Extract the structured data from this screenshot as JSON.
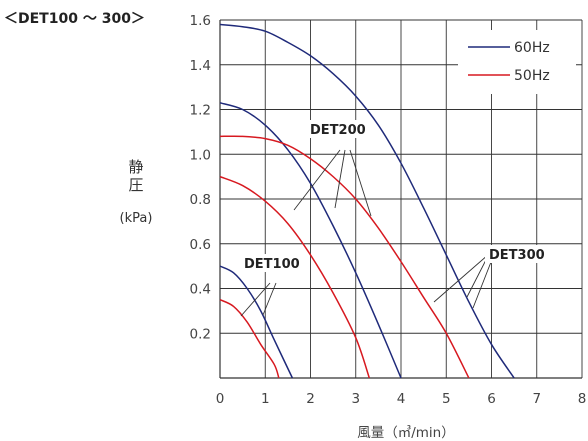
{
  "chart_data": {
    "type": "line",
    "title": "＜DET100 ～ 300＞",
    "ylabel_main": "静\n圧",
    "ylabel_unit": "(kPa)",
    "xlabel": "風量（㎥/min）",
    "xlim": [
      0,
      8
    ],
    "ylim": [
      0,
      1.6
    ],
    "x_ticks": [
      "0",
      "1",
      "2",
      "3",
      "4",
      "5",
      "6",
      "7",
      "8"
    ],
    "y_ticks": [
      "0.2",
      "0.4",
      "0.6",
      "0.8",
      "1.0",
      "1.2",
      "1.4",
      "1.6"
    ],
    "grid": true,
    "legend_position": "top-right",
    "legend": [
      {
        "label": "60Hz",
        "color": "#1f2a7a"
      },
      {
        "label": "50Hz",
        "color": "#d71920"
      }
    ],
    "annotations": [
      {
        "text": "DET100"
      },
      {
        "text": "DET200"
      },
      {
        "text": "DET300"
      }
    ],
    "series": [
      {
        "model": "DET100",
        "freq": "60Hz",
        "color": "#1f2a7a",
        "points": [
          [
            0,
            0.5
          ],
          [
            0.3,
            0.47
          ],
          [
            0.6,
            0.4
          ],
          [
            0.9,
            0.3
          ],
          [
            1.2,
            0.17
          ],
          [
            1.6,
            0
          ]
        ]
      },
      {
        "model": "DET100",
        "freq": "50Hz",
        "color": "#d71920",
        "points": [
          [
            0,
            0.35
          ],
          [
            0.3,
            0.32
          ],
          [
            0.6,
            0.25
          ],
          [
            0.9,
            0.15
          ],
          [
            1.2,
            0.06
          ],
          [
            1.3,
            0
          ]
        ]
      },
      {
        "model": "DET200",
        "freq": "60Hz",
        "color": "#1f2a7a",
        "points": [
          [
            0,
            1.23
          ],
          [
            0.5,
            1.2
          ],
          [
            1.0,
            1.13
          ],
          [
            1.5,
            1.02
          ],
          [
            2.0,
            0.87
          ],
          [
            2.5,
            0.68
          ],
          [
            3.0,
            0.47
          ],
          [
            3.5,
            0.24
          ],
          [
            4.0,
            0
          ]
        ]
      },
      {
        "model": "DET200",
        "freq": "50Hz",
        "color": "#d71920",
        "points": [
          [
            0,
            0.9
          ],
          [
            0.5,
            0.86
          ],
          [
            1.0,
            0.79
          ],
          [
            1.5,
            0.69
          ],
          [
            2.0,
            0.55
          ],
          [
            2.5,
            0.38
          ],
          [
            3.0,
            0.18
          ],
          [
            3.3,
            0
          ]
        ]
      },
      {
        "model": "DET300",
        "freq": "60Hz",
        "color": "#1f2a7a",
        "points": [
          [
            0,
            1.58
          ],
          [
            0.5,
            1.57
          ],
          [
            1.0,
            1.55
          ],
          [
            1.5,
            1.5
          ],
          [
            2.0,
            1.44
          ],
          [
            2.5,
            1.36
          ],
          [
            3.0,
            1.26
          ],
          [
            3.5,
            1.13
          ],
          [
            4.0,
            0.96
          ],
          [
            4.5,
            0.76
          ],
          [
            5.0,
            0.55
          ],
          [
            5.5,
            0.34
          ],
          [
            6.0,
            0.15
          ],
          [
            6.5,
            0
          ]
        ]
      },
      {
        "model": "DET300",
        "freq": "50Hz",
        "color": "#d71920",
        "points": [
          [
            0,
            1.08
          ],
          [
            0.5,
            1.08
          ],
          [
            1.0,
            1.07
          ],
          [
            1.5,
            1.04
          ],
          [
            2.0,
            0.98
          ],
          [
            2.5,
            0.9
          ],
          [
            3.0,
            0.8
          ],
          [
            3.5,
            0.67
          ],
          [
            4.0,
            0.52
          ],
          [
            4.5,
            0.36
          ],
          [
            5.0,
            0.2
          ],
          [
            5.5,
            0
          ]
        ]
      }
    ]
  }
}
